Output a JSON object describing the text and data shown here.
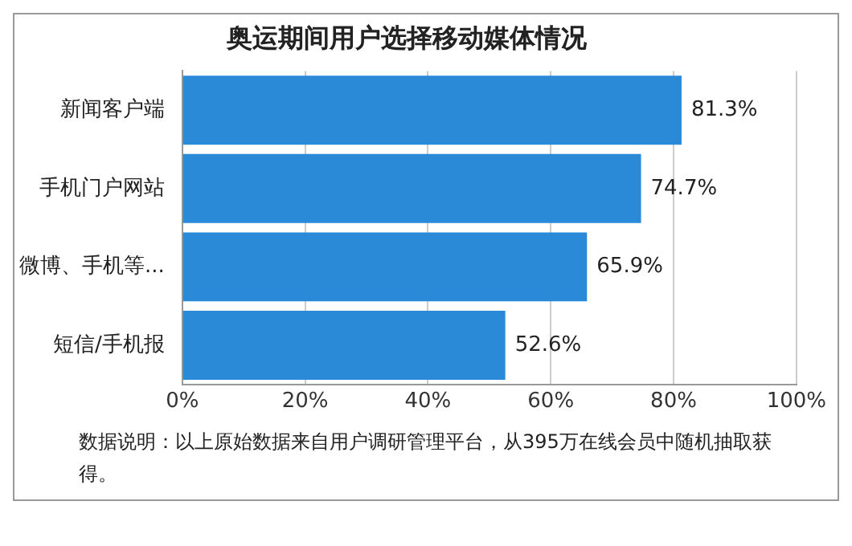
{
  "chart_data": {
    "type": "bar",
    "title": "奥运期间用户选择移动媒体情况",
    "orientation": "horizontal",
    "categories": [
      "新闻客户端",
      "手机门户网站",
      "微博、手机等...",
      "短信/手机报"
    ],
    "values": [
      81.3,
      74.7,
      65.9,
      52.6
    ],
    "value_labels": [
      "81.3%",
      "74.7%",
      "65.9%",
      "52.6%"
    ],
    "color": "#2a8ad8",
    "xlim": [
      0,
      100
    ],
    "xticks": [
      {
        "value": 0,
        "label": "0%"
      },
      {
        "value": 20,
        "label": "20%"
      },
      {
        "value": 40,
        "label": "40%"
      },
      {
        "value": 60,
        "label": "60%"
      },
      {
        "value": 80,
        "label": "80%"
      },
      {
        "value": 100,
        "label": "100%"
      }
    ],
    "grid": "x",
    "legend": false,
    "annotations": [
      "数据说明：以上原始数据来自用户调研管理平台，从395万在线会员中随机抽取获得。"
    ]
  }
}
